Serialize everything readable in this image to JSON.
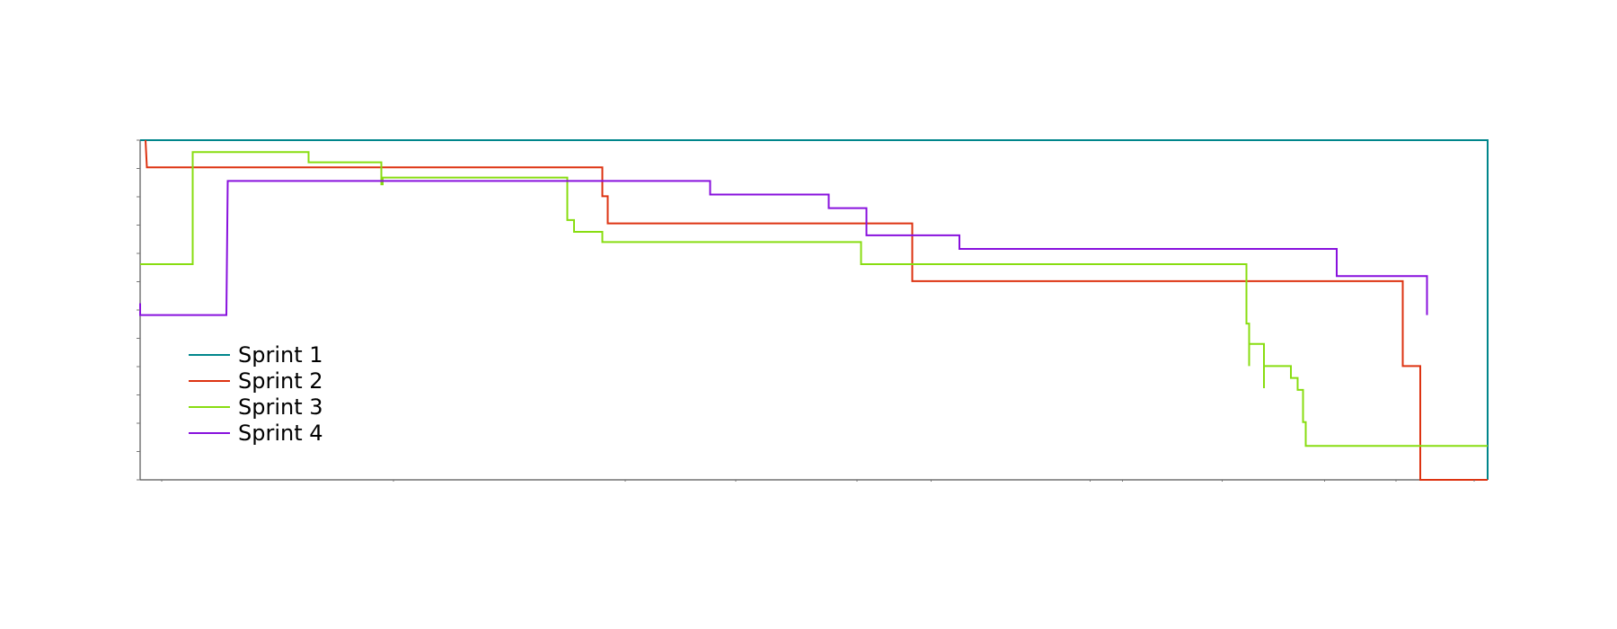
{
  "chart_data": {
    "type": "line",
    "title": "",
    "xlabel": "",
    "ylabel": "",
    "xlim": [
      0,
      100
    ],
    "ylim": [
      0,
      100
    ],
    "grid": false,
    "legend_position": "center-left",
    "step": true,
    "series": [
      {
        "name": "Sprint 1",
        "color": "#00868b",
        "points": [
          [
            0,
            100
          ],
          [
            100,
            100
          ],
          [
            100,
            0
          ]
        ]
      },
      {
        "name": "Sprint 2",
        "color": "#dd3311",
        "points": [
          [
            0.4,
            100
          ],
          [
            0.5,
            92
          ],
          [
            34.3,
            92
          ],
          [
            34.3,
            83.5
          ],
          [
            34.7,
            83.5
          ],
          [
            34.7,
            75.5
          ],
          [
            57.3,
            75.5
          ],
          [
            57.3,
            58.5
          ],
          [
            93.7,
            58.5
          ],
          [
            93.7,
            33.5
          ],
          [
            95,
            33.5
          ],
          [
            95,
            0
          ],
          [
            100,
            0
          ]
        ]
      },
      {
        "name": "Sprint 3",
        "color": "#88dd11",
        "points": [
          [
            0,
            63.5
          ],
          [
            3.9,
            63.5
          ],
          [
            3.9,
            96.5
          ],
          [
            12.5,
            96.5
          ],
          [
            12.5,
            93.5
          ],
          [
            17.9,
            93.5
          ],
          [
            17.9,
            87
          ],
          [
            18,
            87
          ],
          [
            18,
            89
          ],
          [
            31.7,
            89
          ],
          [
            31.7,
            76.5
          ],
          [
            32.2,
            76.5
          ],
          [
            32.2,
            73
          ],
          [
            34.3,
            73
          ],
          [
            34.3,
            70
          ],
          [
            53.5,
            70
          ],
          [
            53.5,
            63.5
          ],
          [
            82.1,
            63.5
          ],
          [
            82.1,
            46
          ],
          [
            82.3,
            46
          ],
          [
            82.3,
            33.5
          ],
          [
            82.3,
            40
          ],
          [
            83.4,
            40
          ],
          [
            83.4,
            27
          ],
          [
            83.4,
            33.5
          ],
          [
            85.4,
            33.5
          ],
          [
            85.4,
            30
          ],
          [
            85.9,
            30
          ],
          [
            85.9,
            26.5
          ],
          [
            86.3,
            26.5
          ],
          [
            86.3,
            17
          ],
          [
            86.5,
            17
          ],
          [
            86.5,
            10
          ],
          [
            100,
            10
          ]
        ]
      },
      {
        "name": "Sprint 4",
        "color": "#8811dd",
        "points": [
          [
            0,
            52
          ],
          [
            0,
            48.5
          ],
          [
            6.4,
            48.5
          ],
          [
            6.5,
            88
          ],
          [
            42.3,
            88
          ],
          [
            42.3,
            84
          ],
          [
            51.1,
            84
          ],
          [
            51.1,
            80
          ],
          [
            53.9,
            80
          ],
          [
            53.9,
            72
          ],
          [
            60.8,
            72
          ],
          [
            60.8,
            68
          ],
          [
            88.8,
            68
          ],
          [
            88.8,
            60
          ],
          [
            95.5,
            60
          ],
          [
            95.5,
            48.5
          ]
        ]
      }
    ]
  }
}
